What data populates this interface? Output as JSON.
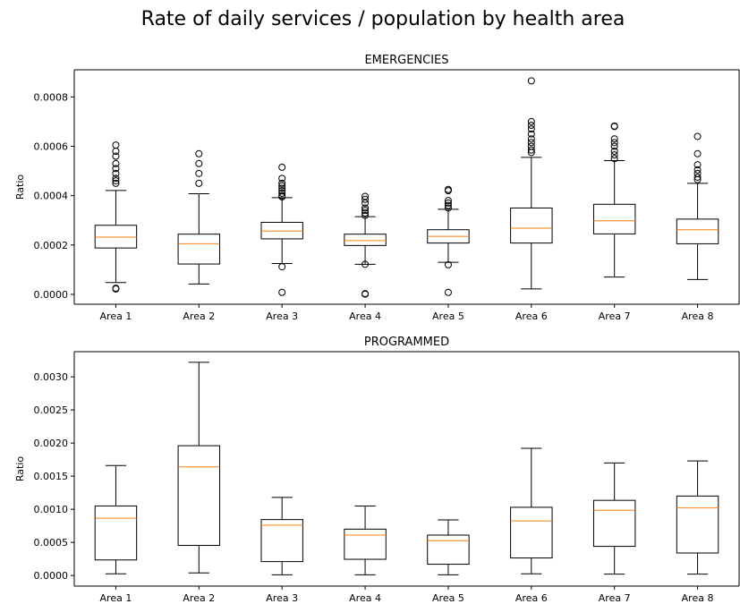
{
  "title": "Rate of daily services / population by health area",
  "chart_data": [
    {
      "type": "box",
      "title": "EMERGENCIES",
      "ylabel": "Ratio",
      "categories": [
        "Area 1",
        "Area 2",
        "Area 3",
        "Area 4",
        "Area 5",
        "Area 6",
        "Area 7",
        "Area 8"
      ],
      "yticks": [
        0.0,
        0.0002,
        0.0004,
        0.0006,
        0.0008
      ],
      "ytick_labels": [
        "0.0000",
        "0.0002",
        "0.0004",
        "0.0006",
        "0.0008"
      ],
      "ylim": [
        -4e-05,
        0.00091
      ],
      "boxes": [
        {
          "whislo": 4.8e-05,
          "q1": 0.000188,
          "med": 0.000232,
          "q3": 0.00028,
          "whishi": 0.000421,
          "fliers": [
            2.2e-05,
            2.5e-05,
            0.00045,
            0.00046,
            0.00047,
            0.00049,
            0.00051,
            0.00053,
            0.00056,
            0.00058,
            0.000605
          ]
        },
        {
          "whislo": 4.2e-05,
          "q1": 0.000123,
          "med": 0.000205,
          "q3": 0.000244,
          "whishi": 0.000408,
          "fliers": [
            0.00045,
            0.00049,
            0.00053,
            0.00057
          ]
        },
        {
          "whislo": 0.000125,
          "q1": 0.000225,
          "med": 0.000257,
          "q3": 0.000292,
          "whishi": 0.000392,
          "fliers": [
            8e-06,
            0.000112,
            0.000395,
            0.0004,
            0.00041,
            0.00042,
            0.00043,
            0.00044,
            0.00045,
            0.00047,
            0.000515
          ]
        },
        {
          "whislo": 0.000122,
          "q1": 0.000198,
          "med": 0.000218,
          "q3": 0.000244,
          "whishi": 0.000315,
          "fliers": [
            1e-06,
            3e-06,
            0.000122,
            0.00032,
            0.00033,
            0.00034,
            0.00035,
            0.00037,
            0.000385,
            0.000397
          ]
        },
        {
          "whislo": 0.00013,
          "q1": 0.000208,
          "med": 0.000235,
          "q3": 0.000262,
          "whishi": 0.000345,
          "fliers": [
            8e-06,
            0.00012,
            0.00035,
            0.00036,
            0.00037,
            0.00038,
            0.00042,
            0.000425
          ]
        },
        {
          "whislo": 2.2e-05,
          "q1": 0.000208,
          "med": 0.000268,
          "q3": 0.00035,
          "whishi": 0.000555,
          "fliers": [
            0.000575,
            0.000585,
            0.0006,
            0.000615,
            0.00063,
            0.00065,
            0.00067,
            0.000685,
            0.0007,
            0.000865
          ]
        },
        {
          "whislo": 7e-05,
          "q1": 0.000245,
          "med": 0.000298,
          "q3": 0.000365,
          "whishi": 0.000542,
          "fliers": [
            0.00055,
            0.000565,
            0.00058,
            0.0006,
            0.000615,
            0.00063,
            0.00068,
            0.000682
          ]
        },
        {
          "whislo": 6e-05,
          "q1": 0.000205,
          "med": 0.000262,
          "q3": 0.000305,
          "whishi": 0.00045,
          "fliers": [
            0.000465,
            0.000475,
            0.00049,
            0.000505,
            0.000525,
            0.00057,
            0.00064
          ]
        }
      ]
    },
    {
      "type": "box",
      "title": "PROGRAMMED",
      "ylabel": "Ratio",
      "categories": [
        "Area 1",
        "Area 2",
        "Area 3",
        "Area 4",
        "Area 5",
        "Area 6",
        "Area 7",
        "Area 8"
      ],
      "yticks": [
        0.0,
        0.0005,
        0.001,
        0.0015,
        0.002,
        0.0025,
        0.003
      ],
      "ytick_labels": [
        "0.0000",
        "0.0005",
        "0.0010",
        "0.0015",
        "0.0020",
        "0.0025",
        "0.0030"
      ],
      "ylim": [
        -0.00016,
        0.00338
      ],
      "boxes": [
        {
          "whislo": 2.5e-05,
          "q1": 0.000235,
          "med": 0.000865,
          "q3": 0.00105,
          "whishi": 0.00166,
          "fliers": []
        },
        {
          "whislo": 4e-05,
          "q1": 0.000455,
          "med": 0.00164,
          "q3": 0.00196,
          "whishi": 0.00322,
          "fliers": []
        },
        {
          "whislo": 1e-05,
          "q1": 0.00021,
          "med": 0.00076,
          "q3": 0.000845,
          "whishi": 0.00118,
          "fliers": []
        },
        {
          "whislo": 1e-05,
          "q1": 0.000245,
          "med": 0.00061,
          "q3": 0.0007,
          "whishi": 0.00105,
          "fliers": []
        },
        {
          "whislo": 1e-05,
          "q1": 0.00017,
          "med": 0.000525,
          "q3": 0.00061,
          "whishi": 0.00084,
          "fliers": []
        },
        {
          "whislo": 2.5e-05,
          "q1": 0.000265,
          "med": 0.000825,
          "q3": 0.00103,
          "whishi": 0.00192,
          "fliers": []
        },
        {
          "whislo": 2e-05,
          "q1": 0.00044,
          "med": 0.000985,
          "q3": 0.001135,
          "whishi": 0.0017,
          "fliers": []
        },
        {
          "whislo": 2e-05,
          "q1": 0.00034,
          "med": 0.00102,
          "q3": 0.0012,
          "whishi": 0.00173,
          "fliers": []
        }
      ]
    }
  ]
}
